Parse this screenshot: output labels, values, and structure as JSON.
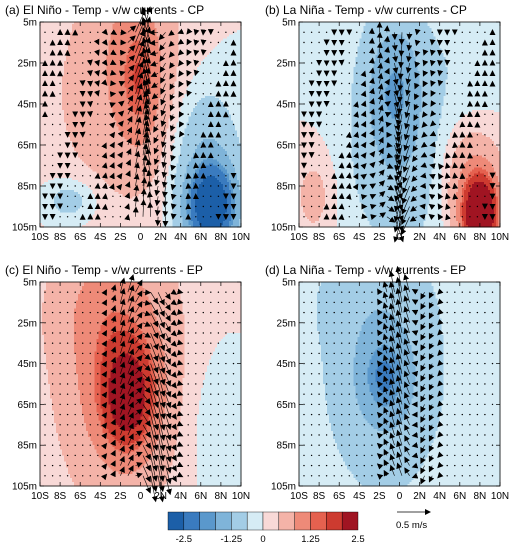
{
  "chart_data": [
    {
      "type": "contour",
      "title": "(a) El Niño - Temp - v/w currents - CP",
      "x_ticks": [
        "10S",
        "8S",
        "6S",
        "4S",
        "2S",
        "0",
        "2N",
        "4N",
        "6N",
        "8N",
        "10N"
      ],
      "y_ticks": [
        "5m",
        "25m",
        "45m",
        "65m",
        "85m",
        "105m"
      ],
      "xlim": [
        -10,
        10
      ],
      "ylim": [
        5,
        105
      ],
      "blobs": [
        {
          "x": -1,
          "y": 20,
          "sx": 4.5,
          "sy": 60,
          "amp": 0.75
        },
        {
          "x": 0,
          "y": 35,
          "sx": 2,
          "sy": 30,
          "amp": 0.8
        },
        {
          "x": 7,
          "y": 95,
          "sx": 2.6,
          "sy": 22,
          "amp": -2.8
        },
        {
          "x": 6.5,
          "y": 60,
          "sx": 3,
          "sy": 25,
          "amp": -0.5
        },
        {
          "x": -7,
          "y": 92,
          "sx": 2.5,
          "sy": 10,
          "amp": -0.5
        },
        {
          "x": -6,
          "y": 45,
          "sx": 6,
          "sy": 50,
          "amp": 0.2
        }
      ],
      "flow": {
        "mode": "upwell_left",
        "center": 0.4,
        "amp": 0.5
      }
    },
    {
      "type": "contour",
      "title": "(b) La Niña - Temp - v/w currents - CP",
      "x_ticks": [
        "10S",
        "8S",
        "6S",
        "4S",
        "2S",
        "0",
        "2N",
        "4N",
        "6N",
        "8N",
        "10N"
      ],
      "y_ticks": [
        "5m",
        "25m",
        "45m",
        "65m",
        "85m",
        "105m"
      ],
      "xlim": [
        -10,
        10
      ],
      "ylim": [
        5,
        105
      ],
      "blobs": [
        {
          "x": -0.5,
          "y": 35,
          "sx": 3,
          "sy": 35,
          "amp": -1.1
        },
        {
          "x": 0,
          "y": 75,
          "sx": 5,
          "sy": 45,
          "amp": -0.5
        },
        {
          "x": 8,
          "y": 100,
          "sx": 1.8,
          "sy": 20,
          "amp": 3.2
        },
        {
          "x": 7,
          "y": 80,
          "sx": 3,
          "sy": 25,
          "amp": 0.6
        },
        {
          "x": -8.5,
          "y": 90,
          "sx": 2,
          "sy": 20,
          "amp": 0.4
        },
        {
          "x": 7,
          "y": 20,
          "sx": 4,
          "sy": 30,
          "amp": -0.2
        }
      ],
      "flow": {
        "mode": "down_center",
        "center": 0.0,
        "amp": 0.45
      }
    },
    {
      "type": "contour",
      "title": "(c) El Niño - Temp - v/w currents - EP",
      "x_ticks": [
        "10S",
        "8S",
        "6S",
        "4S",
        "2S",
        "0",
        "2N",
        "4N",
        "6N",
        "8N",
        "10N"
      ],
      "y_ticks": [
        "5m",
        "25m",
        "45m",
        "65m",
        "85m",
        "105m"
      ],
      "xlim": [
        -10,
        10
      ],
      "ylim": [
        5,
        105
      ],
      "blobs": [
        {
          "x": -1.2,
          "y": 62,
          "sx": 2.6,
          "sy": 25,
          "amp": 1.6
        },
        {
          "x": -2,
          "y": 48,
          "sx": 5.5,
          "sy": 60,
          "amp": 1.2
        },
        {
          "x": -5,
          "y": 15,
          "sx": 5,
          "sy": 30,
          "amp": 0.3
        },
        {
          "x": 6,
          "y": 70,
          "sx": 3,
          "sy": 40,
          "amp": -0.15
        }
      ],
      "flow": {
        "mode": "down_right",
        "center": 1.3,
        "amp": 0.55
      }
    },
    {
      "type": "contour",
      "title": "(d) La Niña - Temp - v/w currents - EP",
      "x_ticks": [
        "10S",
        "8S",
        "6S",
        "4S",
        "2S",
        "0",
        "2N",
        "4N",
        "6N",
        "8N",
        "10N"
      ],
      "y_ticks": [
        "5m",
        "25m",
        "45m",
        "65m",
        "85m",
        "105m"
      ],
      "xlim": [
        -10,
        10
      ],
      "ylim": [
        5,
        105
      ],
      "blobs": [
        {
          "x": -1.5,
          "y": 52,
          "sx": 2.6,
          "sy": 22,
          "amp": -0.95
        },
        {
          "x": -1.5,
          "y": 50,
          "sx": 6,
          "sy": 60,
          "amp": -0.65
        },
        {
          "x": -4,
          "y": 12,
          "sx": 6,
          "sy": 25,
          "amp": -0.2
        }
      ],
      "flow": {
        "mode": "up_left",
        "center": 0.2,
        "amp": 0.4
      }
    }
  ],
  "colorbar": {
    "colors": [
      "#1c5fa8",
      "#3a7bbf",
      "#5a98cc",
      "#7fb4d9",
      "#a3cde6",
      "#d6ecf5",
      "#f8d9d7",
      "#f4b3a8",
      "#ee8a78",
      "#e5614f",
      "#cd3b30",
      "#a01422"
    ],
    "levels": [
      -2.5,
      -2,
      -1.5,
      -1.25,
      -0.75,
      -0.25,
      0,
      0.25,
      0.75,
      1.25,
      1.5,
      2,
      2.5
    ],
    "tick_labels": [
      "-2.5",
      "-1.25",
      "0",
      "1.25",
      "2.5"
    ]
  },
  "reference_vector": {
    "label": "0.5 m/s",
    "value": 0.5
  }
}
